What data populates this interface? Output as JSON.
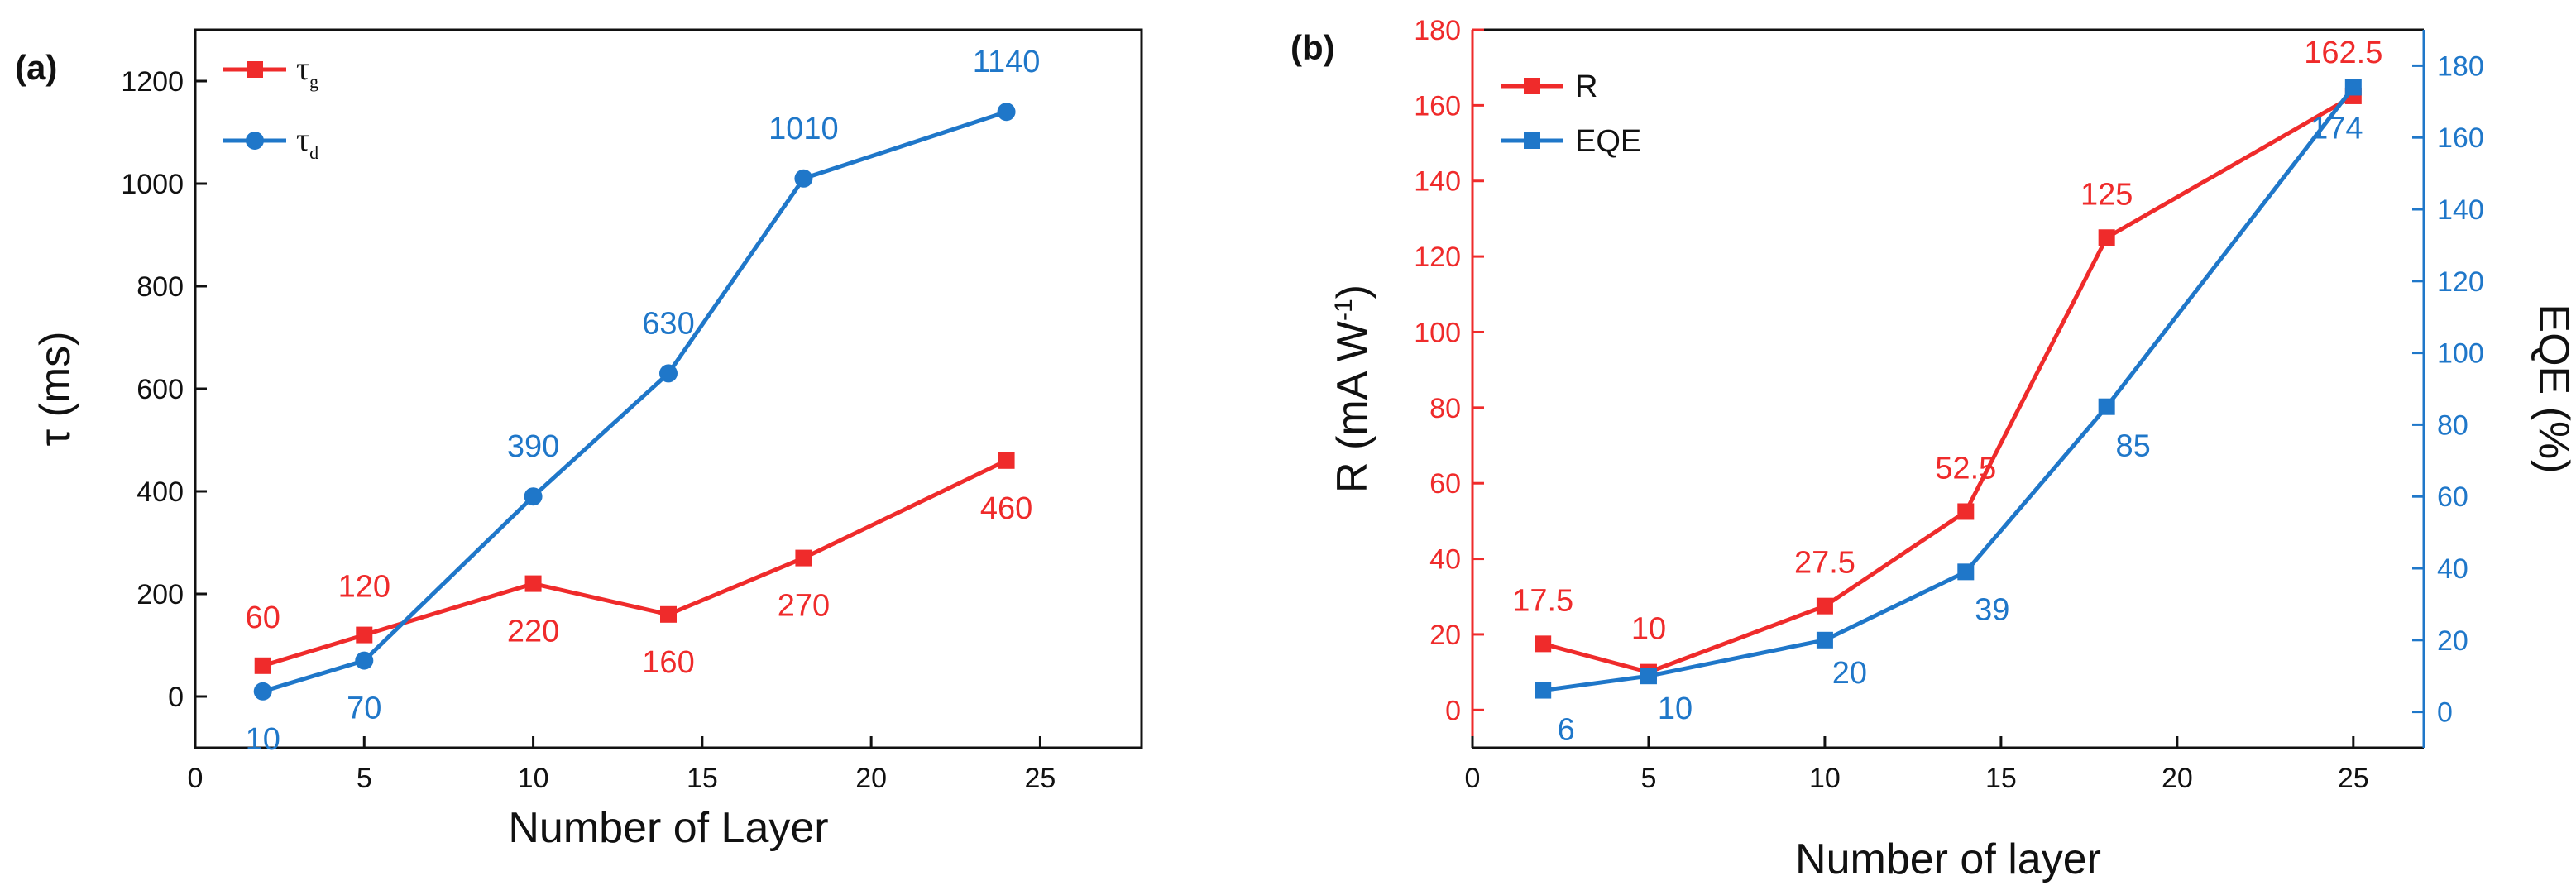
{
  "chart_data": [
    {
      "panel": "(a)",
      "type": "line",
      "xlabel": "Number of Layer",
      "ylabel": "τ (ms)",
      "xlim": [
        0,
        28
      ],
      "ylim": [
        -100,
        1300
      ],
      "xticks": [
        0,
        5,
        10,
        15,
        20,
        25
      ],
      "yticks": [
        0,
        200,
        400,
        600,
        800,
        1000,
        1200
      ],
      "legend_position": "top-left",
      "series": [
        {
          "name": "τg",
          "symbol": "τ",
          "subscript": "g",
          "color": "#ef2b2b",
          "marker": "square",
          "x": [
            2,
            5,
            10,
            14,
            18,
            24
          ],
          "y": [
            60,
            120,
            220,
            160,
            270,
            460
          ],
          "labels": [
            "60",
            "120",
            "220",
            "160",
            "270",
            "460"
          ]
        },
        {
          "name": "τd",
          "symbol": "τ",
          "subscript": "d",
          "color": "#1f77c9",
          "marker": "circle",
          "x": [
            2,
            5,
            10,
            14,
            18,
            24
          ],
          "y": [
            10,
            70,
            390,
            630,
            1010,
            1140
          ],
          "labels": [
            "10",
            "70",
            "390",
            "630",
            "1010",
            "1140"
          ]
        }
      ]
    },
    {
      "panel": "(b)",
      "type": "line",
      "xlabel": "Number of layer",
      "ylabel_left": "R (mA W",
      "ylabel_left_sup": "-1",
      "ylabel_left_end": ")",
      "ylabel_right": "EQE (%)",
      "xlim": [
        0,
        27
      ],
      "ylim_left": [
        -10,
        180
      ],
      "ylim_right": [
        -10,
        190
      ],
      "xticks": [
        0,
        5,
        10,
        15,
        20,
        25
      ],
      "yticks_left": [
        0,
        20,
        40,
        60,
        80,
        100,
        120,
        140,
        160,
        180
      ],
      "yticks_right": [
        0,
        20,
        40,
        60,
        80,
        100,
        120,
        140,
        160,
        180
      ],
      "legend_position": "top-left",
      "series": [
        {
          "name": "R",
          "axis": "left",
          "color": "#ef2b2b",
          "marker": "square",
          "x": [
            2,
            5,
            10,
            14,
            18,
            25
          ],
          "y": [
            17.5,
            10,
            27.5,
            52.5,
            125,
            162.5
          ],
          "labels": [
            "17.5",
            "10",
            "27.5",
            "52.5",
            "125",
            "162.5"
          ]
        },
        {
          "name": "EQE",
          "axis": "right",
          "color": "#1f77c9",
          "marker": "square",
          "x": [
            2,
            5,
            10,
            14,
            18,
            25
          ],
          "y": [
            6,
            10,
            20,
            39,
            85,
            174
          ],
          "labels": [
            "6",
            "10",
            "20",
            "39",
            "85",
            "174"
          ]
        }
      ]
    }
  ]
}
